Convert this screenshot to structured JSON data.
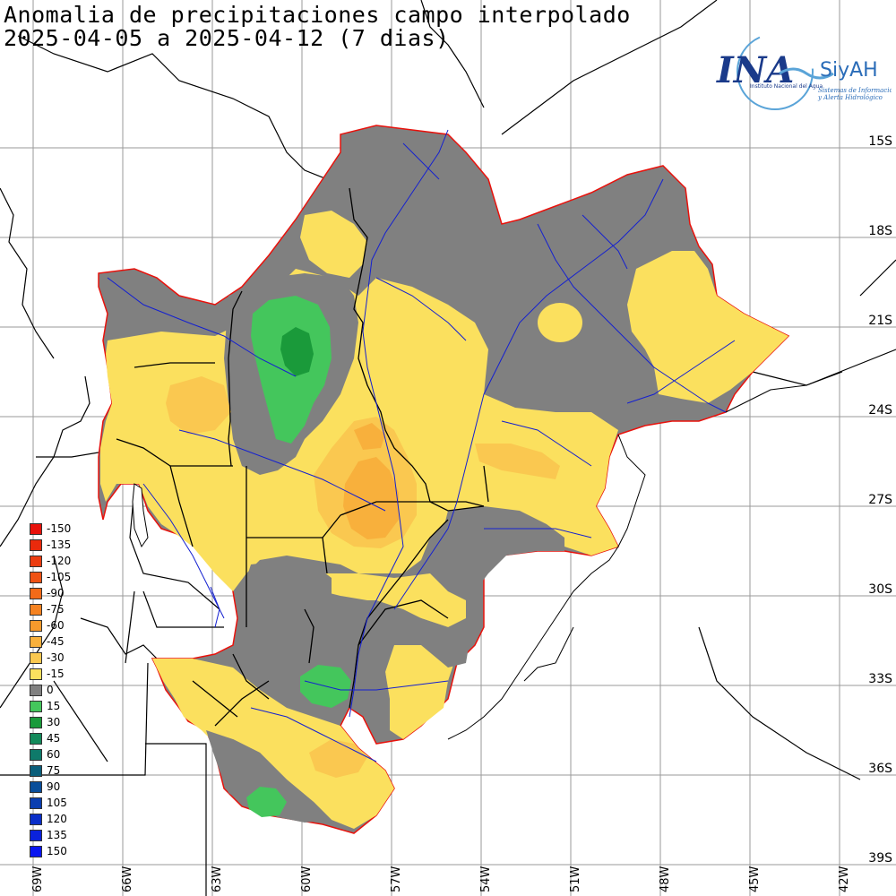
{
  "title": {
    "line1": "Anomalia de precipitaciones campo interpolado",
    "line2": "2025-04-05 a 2025-04-12 (7 dias)"
  },
  "logo": {
    "brand": "INA",
    "sub": "SiyAH",
    "org": "Instituto Nacional del Agua",
    "tagline1": "Sistemas de Información",
    "tagline2": "y Alerta Hidrológico"
  },
  "latitude_labels": [
    "15S",
    "18S",
    "21S",
    "24S",
    "27S",
    "30S",
    "33S",
    "36S",
    "39S"
  ],
  "longitude_labels": [
    "69W",
    "66W",
    "63W",
    "60W",
    "57W",
    "54W",
    "51W",
    "48W",
    "45W",
    "42W"
  ],
  "legend": [
    {
      "value": "-150",
      "color": "#e8120c"
    },
    {
      "value": "-135",
      "color": "#ea2a0c"
    },
    {
      "value": "-120",
      "color": "#ec3c10"
    },
    {
      "value": "-105",
      "color": "#ef5214"
    },
    {
      "value": "-90",
      "color": "#f26a18"
    },
    {
      "value": "-75",
      "color": "#f58220"
    },
    {
      "value": "-60",
      "color": "#f79a2c"
    },
    {
      "value": "-45",
      "color": "#f8b03c"
    },
    {
      "value": "-30",
      "color": "#fac850"
    },
    {
      "value": "-15",
      "color": "#fbe05e"
    },
    {
      "value": "0",
      "color": "#808080"
    },
    {
      "value": "15",
      "color": "#44c65c"
    },
    {
      "value": "30",
      "color": "#1a9a3a"
    },
    {
      "value": "45",
      "color": "#138a5a"
    },
    {
      "value": "60",
      "color": "#0e7a6a"
    },
    {
      "value": "75",
      "color": "#0a5e7a"
    },
    {
      "value": "90",
      "color": "#0a4e9a"
    },
    {
      "value": "105",
      "color": "#0a3eb0"
    },
    {
      "value": "120",
      "color": "#0a2ec8"
    },
    {
      "value": "135",
      "color": "#0a22dc"
    },
    {
      "value": "150",
      "color": "#0a16f0"
    }
  ]
}
